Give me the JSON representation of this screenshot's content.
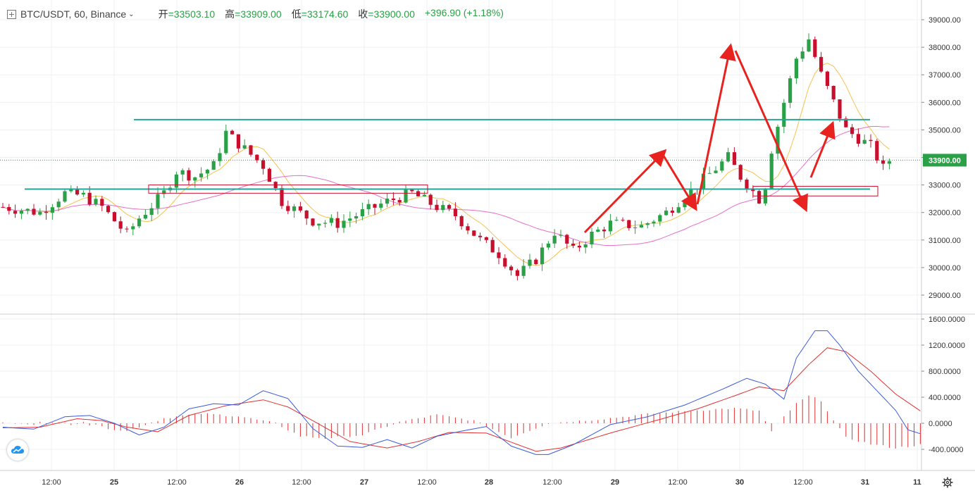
{
  "header": {
    "expand_icon": "square-plus-icon",
    "symbol": "BTC/USDT, 60, Binance",
    "dropdown_icon": "chevron-down-icon",
    "open_label": "开",
    "open_value": "=33503.10",
    "high_label": "高",
    "high_value": "=33909.00",
    "low_label": "低",
    "low_value": "=33174.60",
    "close_label": "收",
    "close_value": "=33900.00",
    "change": "+396.90 (+1.18%)",
    "up_color": "#2aa147",
    "down_color": "#c8102e"
  },
  "price_badge": "33900.00",
  "x_ticks": [
    "12:00",
    "25",
    "12:00",
    "26",
    "12:00",
    "27",
    "12:00",
    "28",
    "12:00",
    "29",
    "12:00",
    "30",
    "12:00",
    "31",
    "11"
  ],
  "price_axis_ticks": [
    "39000.00",
    "38000.00",
    "37000.00",
    "36000.00",
    "35000.00",
    "34000.00",
    "33000.00",
    "32000.00",
    "31000.00",
    "30000.00",
    "29000.00"
  ],
  "macd_axis_ticks": [
    "1600.0000",
    "1200.0000",
    "800.0000",
    "400.0000",
    "0.0000",
    "-400.0000"
  ],
  "icons": {
    "logo": "tradingview-cloud-icon",
    "settings": "gear-icon"
  },
  "chart_data": [
    {
      "type": "candlestick",
      "timeframe": "60",
      "ylim": [
        28600,
        39500
      ],
      "y_ticks": [
        39000,
        38000,
        37000,
        36000,
        35000,
        34000,
        33000,
        32000,
        31000,
        30000,
        29000
      ],
      "last_price": 33900.0,
      "x_labels": [
        "12:00",
        "25",
        "12:00",
        "26",
        "12:00",
        "27",
        "12:00",
        "28",
        "12:00",
        "29",
        "12:00",
        "30",
        "12:00",
        "31",
        "11"
      ],
      "price_path": [
        [
          0,
          32200
        ],
        [
          6,
          32000
        ],
        [
          10,
          32700
        ],
        [
          13,
          32600
        ],
        [
          16,
          32200
        ],
        [
          20,
          31200
        ],
        [
          22,
          31800
        ],
        [
          26,
          32700
        ],
        [
          28,
          33500
        ],
        [
          31,
          33300
        ],
        [
          34,
          33700
        ],
        [
          36,
          34900
        ],
        [
          39,
          34300
        ],
        [
          42,
          33700
        ],
        [
          45,
          32400
        ],
        [
          50,
          31700
        ],
        [
          54,
          31600
        ],
        [
          58,
          32000
        ],
        [
          62,
          32400
        ],
        [
          66,
          32700
        ],
        [
          70,
          32200
        ],
        [
          73,
          31900
        ],
        [
          77,
          31000
        ],
        [
          80,
          30500
        ],
        [
          83,
          29700
        ],
        [
          86,
          30300
        ],
        [
          89,
          31300
        ],
        [
          92,
          30600
        ],
        [
          95,
          31200
        ],
        [
          98,
          31600
        ],
        [
          103,
          31500
        ],
        [
          107,
          32000
        ],
        [
          111,
          32800
        ],
        [
          114,
          33400
        ],
        [
          117,
          34000
        ],
        [
          119,
          33300
        ],
        [
          122,
          32500
        ],
        [
          123,
          33000
        ],
        [
          124,
          34300
        ],
        [
          126,
          36000
        ],
        [
          128,
          37600
        ],
        [
          130,
          38300
        ],
        [
          132,
          37000
        ],
        [
          134,
          36000
        ],
        [
          136,
          35000
        ],
        [
          138,
          34700
        ],
        [
          140,
          34400
        ],
        [
          142,
          33600
        ],
        [
          143,
          33900
        ]
      ],
      "moving_averages": [
        {
          "color": "#f5c24e"
        },
        {
          "color": "#e86ec9"
        }
      ],
      "annotations": [
        {
          "kind": "horizontal-line",
          "price": 35370,
          "color": "#26a69a"
        },
        {
          "kind": "horizontal-line",
          "price": 32850,
          "color": "#26a69a"
        },
        {
          "kind": "rectangle",
          "from_price": 32700,
          "to_price": 33000,
          "color": "#c8102e"
        },
        {
          "kind": "rectangle",
          "from_price": 32600,
          "to_price": 32950,
          "color": "#c8102e"
        },
        {
          "kind": "arrow-path",
          "color": "#e8231f"
        }
      ]
    },
    {
      "type": "macd",
      "ylim": [
        -650,
        1650
      ],
      "y_ticks": [
        1600,
        1200,
        800,
        400,
        0,
        -400
      ],
      "macd_line": [
        [
          0,
          -60
        ],
        [
          5,
          -90
        ],
        [
          10,
          100
        ],
        [
          14,
          120
        ],
        [
          18,
          0
        ],
        [
          22,
          -180
        ],
        [
          26,
          -60
        ],
        [
          30,
          220
        ],
        [
          34,
          300
        ],
        [
          38,
          280
        ],
        [
          42,
          500
        ],
        [
          46,
          380
        ],
        [
          50,
          -80
        ],
        [
          54,
          -350
        ],
        [
          58,
          -370
        ],
        [
          62,
          -250
        ],
        [
          66,
          -380
        ],
        [
          70,
          -200
        ],
        [
          74,
          -120
        ],
        [
          78,
          -50
        ],
        [
          82,
          -350
        ],
        [
          86,
          -480
        ],
        [
          88,
          -480
        ],
        [
          92,
          -330
        ],
        [
          98,
          -20
        ],
        [
          104,
          100
        ],
        [
          110,
          280
        ],
        [
          116,
          520
        ],
        [
          120,
          690
        ],
        [
          123,
          600
        ],
        [
          126,
          370
        ],
        [
          128,
          1000
        ],
        [
          131,
          1420
        ],
        [
          133,
          1420
        ],
        [
          135,
          1200
        ],
        [
          138,
          800
        ],
        [
          141,
          500
        ],
        [
          144,
          200
        ],
        [
          146,
          -100
        ],
        [
          148,
          -160
        ]
      ],
      "signal_line": [
        [
          0,
          -70
        ],
        [
          6,
          -60
        ],
        [
          12,
          70
        ],
        [
          16,
          40
        ],
        [
          20,
          -60
        ],
        [
          25,
          -130
        ],
        [
          30,
          120
        ],
        [
          36,
          270
        ],
        [
          42,
          360
        ],
        [
          46,
          250
        ],
        [
          50,
          40
        ],
        [
          56,
          -280
        ],
        [
          62,
          -380
        ],
        [
          67,
          -280
        ],
        [
          72,
          -140
        ],
        [
          78,
          -150
        ],
        [
          86,
          -430
        ],
        [
          90,
          -380
        ],
        [
          98,
          -150
        ],
        [
          106,
          60
        ],
        [
          112,
          220
        ],
        [
          118,
          420
        ],
        [
          122,
          560
        ],
        [
          126,
          500
        ],
        [
          130,
          900
        ],
        [
          133,
          1160
        ],
        [
          136,
          1100
        ],
        [
          140,
          800
        ],
        [
          144,
          450
        ],
        [
          148,
          190
        ]
      ],
      "histogram": [
        [
          16,
          -60
        ],
        [
          20,
          -120
        ],
        [
          26,
          80
        ],
        [
          32,
          150
        ],
        [
          38,
          110
        ],
        [
          44,
          0
        ],
        [
          48,
          -200
        ],
        [
          52,
          -230
        ],
        [
          58,
          -180
        ],
        [
          64,
          20
        ],
        [
          70,
          130
        ],
        [
          76,
          40
        ],
        [
          82,
          -220
        ],
        [
          88,
          0
        ],
        [
          96,
          60
        ],
        [
          104,
          140
        ],
        [
          112,
          200
        ],
        [
          118,
          230
        ],
        [
          122,
          190
        ],
        [
          124,
          -130
        ],
        [
          126,
          100
        ],
        [
          128,
          300
        ],
        [
          130,
          420
        ],
        [
          132,
          350
        ],
        [
          134,
          40
        ],
        [
          136,
          -220
        ],
        [
          140,
          -320
        ],
        [
          144,
          -380
        ],
        [
          148,
          -330
        ]
      ],
      "line_colors": {
        "macd": "#3b5bdb",
        "signal": "#e03131",
        "histogram": "#e03131"
      }
    }
  ]
}
